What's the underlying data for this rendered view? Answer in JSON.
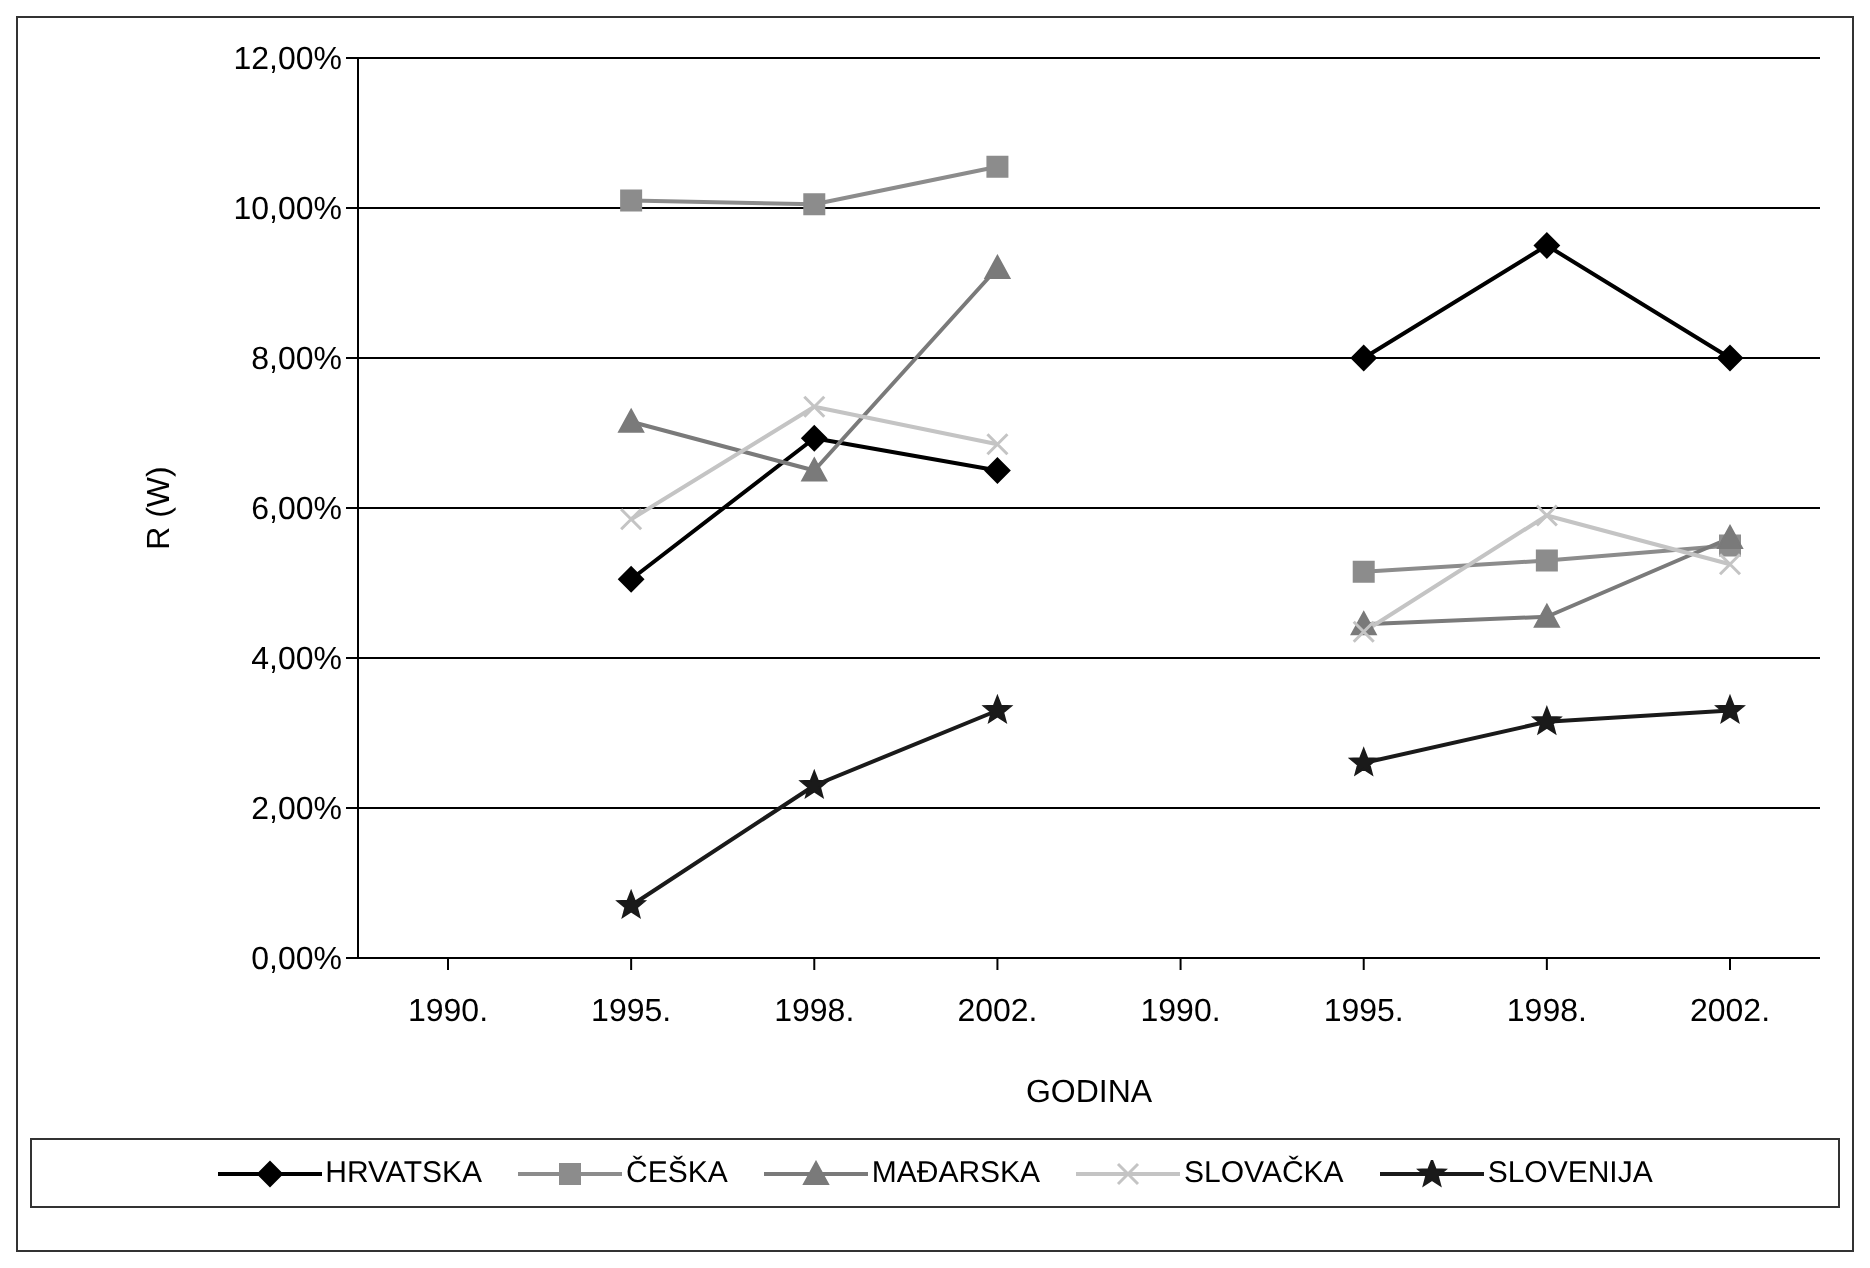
{
  "chart_data": {
    "type": "line",
    "xlabel": "GODINA",
    "ylabel": "R (W)",
    "categories": [
      "1990.",
      "1995.",
      "1998.",
      "2002.",
      "1990.",
      "1995.",
      "1998.",
      "2002."
    ],
    "series": [
      {
        "name": "HRVATSKA",
        "color": "#000000",
        "marker": "diamond",
        "values": [
          null,
          5.05,
          6.93,
          6.5,
          null,
          8.0,
          9.5,
          8.0
        ]
      },
      {
        "name": "ČEŠKA",
        "color": "#8c8c8c",
        "marker": "square",
        "values": [
          null,
          10.1,
          10.05,
          10.55,
          null,
          5.15,
          5.3,
          5.5
        ]
      },
      {
        "name": "MAĐARSKA",
        "color": "#7a7a7a",
        "marker": "triangle",
        "values": [
          null,
          7.15,
          6.5,
          9.2,
          null,
          4.45,
          4.55,
          5.6
        ]
      },
      {
        "name": "SLOVAČKA",
        "color": "#c4c4c4",
        "marker": "cross",
        "values": [
          null,
          5.85,
          7.35,
          6.85,
          null,
          4.35,
          5.9,
          5.25
        ]
      },
      {
        "name": "SLOVENIJA",
        "color": "#1a1a1a",
        "marker": "star",
        "values": [
          null,
          0.7,
          2.3,
          3.3,
          null,
          2.6,
          3.15,
          3.3
        ]
      }
    ],
    "ylim": [
      0,
      12
    ],
    "yticks": [
      {
        "value": 0,
        "label": "0,00%"
      },
      {
        "value": 2,
        "label": "2,00%"
      },
      {
        "value": 4,
        "label": "4,00%"
      },
      {
        "value": 6,
        "label": "6,00%"
      },
      {
        "value": 8,
        "label": "8,00%"
      },
      {
        "value": 10,
        "label": "10,00%"
      },
      {
        "value": 12,
        "label": "12,00%"
      }
    ],
    "grid": "y",
    "legend": "bottom",
    "line_style": "solid"
  }
}
